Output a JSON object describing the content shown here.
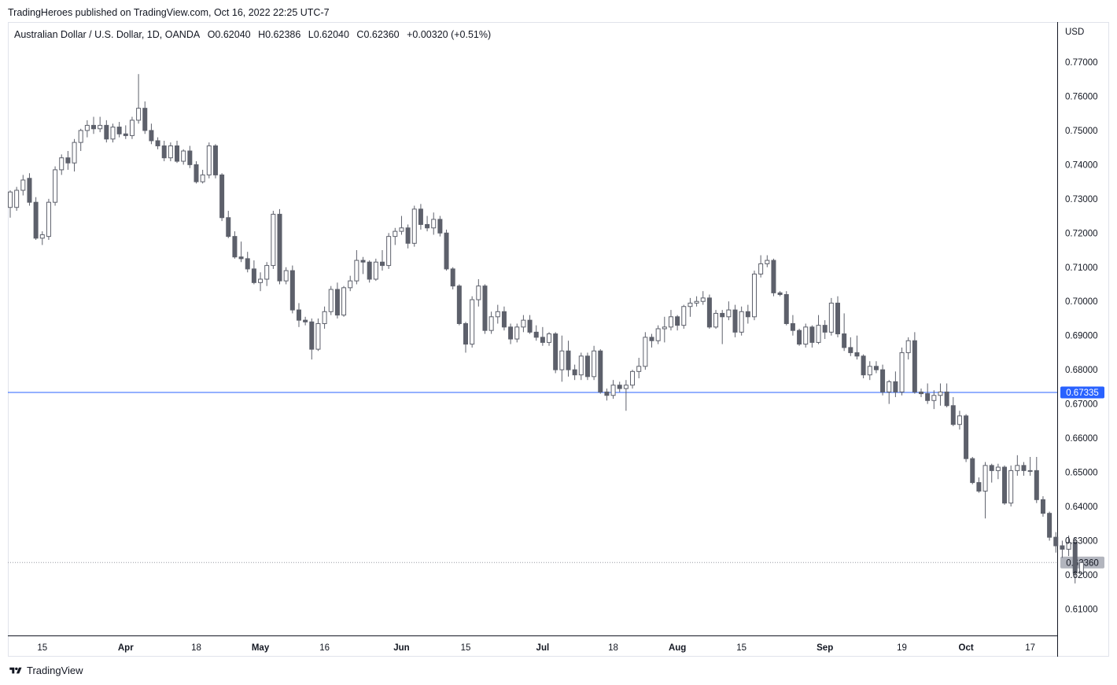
{
  "header": {
    "published": "TradingHeroes published on TradingView.com, Oct 16, 2022 22:25 UTC-7"
  },
  "legend": {
    "symbol": "Australian Dollar / U.S. Dollar, 1D, OANDA",
    "open": "O0.62040",
    "high": "H0.62386",
    "low": "L0.62040",
    "close": "C0.62360",
    "change": "+0.00320 (+0.51%)"
  },
  "footer": {
    "brand": "TradingView"
  },
  "colors": {
    "bear": "#5d606b",
    "bull_fill": "#ffffff",
    "bull_border": "#5d606b",
    "hline": "#2962ff",
    "last_price_tag": "#b2b5be"
  },
  "chart_data": {
    "type": "candlestick",
    "currency_label": "USD",
    "y_ticks": [
      "0.77000",
      "0.76000",
      "0.75000",
      "0.74000",
      "0.73000",
      "0.72000",
      "0.71000",
      "0.70000",
      "0.69000",
      "0.68000",
      "0.67000",
      "0.66000",
      "0.65000",
      "0.64000",
      "0.63000",
      "0.62000",
      "0.61000"
    ],
    "ylim": [
      0.6025,
      0.7815
    ],
    "x_labels": [
      {
        "label": "15",
        "bold": false,
        "index": 5
      },
      {
        "label": "Apr",
        "bold": true,
        "index": 18
      },
      {
        "label": "18",
        "bold": false,
        "index": 29
      },
      {
        "label": "May",
        "bold": true,
        "index": 39
      },
      {
        "label": "16",
        "bold": false,
        "index": 49
      },
      {
        "label": "Jun",
        "bold": true,
        "index": 61
      },
      {
        "label": "15",
        "bold": false,
        "index": 71
      },
      {
        "label": "Jul",
        "bold": true,
        "index": 83
      },
      {
        "label": "18",
        "bold": false,
        "index": 94
      },
      {
        "label": "Aug",
        "bold": true,
        "index": 104
      },
      {
        "label": "15",
        "bold": false,
        "index": 114
      },
      {
        "label": "Sep",
        "bold": true,
        "index": 127
      },
      {
        "label": "19",
        "bold": false,
        "index": 139
      },
      {
        "label": "Oct",
        "bold": true,
        "index": 149
      },
      {
        "label": "17",
        "bold": false,
        "index": 159
      }
    ],
    "horizontal_line": {
      "value": 0.67335,
      "label": "0.67335"
    },
    "last_price": {
      "value": 0.6236,
      "label": "0.62360"
    },
    "candles": [
      [
        0.7275,
        0.7325,
        0.7245,
        0.732
      ],
      [
        0.7275,
        0.7335,
        0.7265,
        0.7325
      ],
      [
        0.7325,
        0.737,
        0.731,
        0.7355
      ],
      [
        0.736,
        0.7375,
        0.728,
        0.729
      ],
      [
        0.729,
        0.7305,
        0.718,
        0.7185
      ],
      [
        0.7185,
        0.7205,
        0.7165,
        0.7195
      ],
      [
        0.719,
        0.73,
        0.718,
        0.729
      ],
      [
        0.729,
        0.7395,
        0.728,
        0.7385
      ],
      [
        0.7385,
        0.743,
        0.737,
        0.742
      ],
      [
        0.742,
        0.744,
        0.7385,
        0.7405
      ],
      [
        0.7405,
        0.7475,
        0.738,
        0.7465
      ],
      [
        0.7465,
        0.7505,
        0.744,
        0.75
      ],
      [
        0.75,
        0.753,
        0.748,
        0.7515
      ],
      [
        0.7515,
        0.754,
        0.749,
        0.7505
      ],
      [
        0.7505,
        0.754,
        0.7495,
        0.7515
      ],
      [
        0.7515,
        0.753,
        0.7465,
        0.7475
      ],
      [
        0.7475,
        0.752,
        0.7465,
        0.751
      ],
      [
        0.751,
        0.7525,
        0.748,
        0.749
      ],
      [
        0.749,
        0.7515,
        0.7475,
        0.7485
      ],
      [
        0.7485,
        0.754,
        0.7475,
        0.753
      ],
      [
        0.753,
        0.7665,
        0.752,
        0.7565
      ],
      [
        0.7565,
        0.7585,
        0.749,
        0.75
      ],
      [
        0.75,
        0.752,
        0.746,
        0.747
      ],
      [
        0.747,
        0.748,
        0.7445,
        0.7455
      ],
      [
        0.7455,
        0.747,
        0.741,
        0.742
      ],
      [
        0.742,
        0.7465,
        0.741,
        0.7455
      ],
      [
        0.7455,
        0.747,
        0.7405,
        0.741
      ],
      [
        0.741,
        0.7445,
        0.74,
        0.744
      ],
      [
        0.744,
        0.7455,
        0.739,
        0.74
      ],
      [
        0.74,
        0.741,
        0.7345,
        0.735
      ],
      [
        0.735,
        0.7385,
        0.7345,
        0.737
      ],
      [
        0.737,
        0.7465,
        0.736,
        0.7455
      ],
      [
        0.7455,
        0.746,
        0.736,
        0.737
      ],
      [
        0.737,
        0.7375,
        0.7235,
        0.7245
      ],
      [
        0.7245,
        0.7265,
        0.7185,
        0.719
      ],
      [
        0.719,
        0.7205,
        0.7125,
        0.713
      ],
      [
        0.713,
        0.7175,
        0.7115,
        0.7125
      ],
      [
        0.7125,
        0.7145,
        0.7085,
        0.7095
      ],
      [
        0.7095,
        0.712,
        0.705,
        0.7055
      ],
      [
        0.7055,
        0.7085,
        0.703,
        0.7065
      ],
      [
        0.7065,
        0.7115,
        0.7045,
        0.7105
      ],
      [
        0.7105,
        0.7265,
        0.7095,
        0.7255
      ],
      [
        0.7255,
        0.727,
        0.705,
        0.706
      ],
      [
        0.706,
        0.71,
        0.705,
        0.709
      ],
      [
        0.709,
        0.7105,
        0.6965,
        0.6975
      ],
      [
        0.6975,
        0.6995,
        0.6925,
        0.6945
      ],
      [
        0.6945,
        0.6955,
        0.693,
        0.694
      ],
      [
        0.694,
        0.695,
        0.683,
        0.686
      ],
      [
        0.686,
        0.695,
        0.6855,
        0.6935
      ],
      [
        0.6935,
        0.6985,
        0.692,
        0.697
      ],
      [
        0.697,
        0.7045,
        0.696,
        0.7035
      ],
      [
        0.7035,
        0.7055,
        0.695,
        0.696
      ],
      [
        0.696,
        0.7045,
        0.6955,
        0.704
      ],
      [
        0.704,
        0.7075,
        0.703,
        0.706
      ],
      [
        0.706,
        0.715,
        0.705,
        0.712
      ],
      [
        0.712,
        0.713,
        0.708,
        0.7115
      ],
      [
        0.7115,
        0.712,
        0.7055,
        0.7065
      ],
      [
        0.7065,
        0.7125,
        0.706,
        0.7115
      ],
      [
        0.7115,
        0.715,
        0.709,
        0.7105
      ],
      [
        0.7105,
        0.72,
        0.7095,
        0.719
      ],
      [
        0.719,
        0.7215,
        0.7165,
        0.7205
      ],
      [
        0.7205,
        0.725,
        0.7195,
        0.7215
      ],
      [
        0.7215,
        0.7225,
        0.7155,
        0.717
      ],
      [
        0.717,
        0.728,
        0.716,
        0.727
      ],
      [
        0.727,
        0.7285,
        0.721,
        0.7225
      ],
      [
        0.7225,
        0.725,
        0.7205,
        0.7215
      ],
      [
        0.7215,
        0.726,
        0.7195,
        0.724
      ],
      [
        0.724,
        0.725,
        0.719,
        0.72
      ],
      [
        0.72,
        0.721,
        0.709,
        0.7095
      ],
      [
        0.7095,
        0.71,
        0.7035,
        0.7045
      ],
      [
        0.7045,
        0.705,
        0.693,
        0.6935
      ],
      [
        0.6935,
        0.694,
        0.685,
        0.6875
      ],
      [
        0.6875,
        0.7015,
        0.6865,
        0.7005
      ],
      [
        0.7005,
        0.7065,
        0.6985,
        0.7045
      ],
      [
        0.7045,
        0.705,
        0.6905,
        0.6915
      ],
      [
        0.6915,
        0.697,
        0.6905,
        0.6955
      ],
      [
        0.6955,
        0.699,
        0.6935,
        0.697
      ],
      [
        0.697,
        0.6985,
        0.6915,
        0.6925
      ],
      [
        0.6925,
        0.6935,
        0.6875,
        0.689
      ],
      [
        0.689,
        0.6935,
        0.688,
        0.6925
      ],
      [
        0.6925,
        0.696,
        0.691,
        0.6945
      ],
      [
        0.6945,
        0.696,
        0.6905,
        0.691
      ],
      [
        0.691,
        0.693,
        0.6885,
        0.6895
      ],
      [
        0.6895,
        0.6925,
        0.687,
        0.688
      ],
      [
        0.688,
        0.691,
        0.687,
        0.6905
      ],
      [
        0.6905,
        0.691,
        0.679,
        0.68
      ],
      [
        0.68,
        0.69,
        0.6765,
        0.6855
      ],
      [
        0.6855,
        0.6885,
        0.678,
        0.68
      ],
      [
        0.68,
        0.6815,
        0.677,
        0.6785
      ],
      [
        0.6785,
        0.685,
        0.677,
        0.684
      ],
      [
        0.684,
        0.685,
        0.677,
        0.678
      ],
      [
        0.678,
        0.687,
        0.677,
        0.6855
      ],
      [
        0.6855,
        0.686,
        0.673,
        0.6735
      ],
      [
        0.6735,
        0.6745,
        0.671,
        0.6725
      ],
      [
        0.6725,
        0.677,
        0.6715,
        0.6755
      ],
      [
        0.6755,
        0.6765,
        0.6735,
        0.6745
      ],
      [
        0.6745,
        0.677,
        0.668,
        0.6755
      ],
      [
        0.6755,
        0.68,
        0.6745,
        0.6795
      ],
      [
        0.6795,
        0.6835,
        0.6775,
        0.681
      ],
      [
        0.681,
        0.691,
        0.68,
        0.6895
      ],
      [
        0.6895,
        0.6905,
        0.6865,
        0.6885
      ],
      [
        0.6885,
        0.693,
        0.6875,
        0.692
      ],
      [
        0.692,
        0.6955,
        0.688,
        0.6925
      ],
      [
        0.6925,
        0.6975,
        0.6915,
        0.6955
      ],
      [
        0.6955,
        0.696,
        0.6915,
        0.693
      ],
      [
        0.693,
        0.699,
        0.692,
        0.6985
      ],
      [
        0.6985,
        0.701,
        0.6955,
        0.6995
      ],
      [
        0.6995,
        0.7015,
        0.6985,
        0.7
      ],
      [
        0.7,
        0.703,
        0.699,
        0.701
      ],
      [
        0.701,
        0.702,
        0.692,
        0.6925
      ],
      [
        0.6925,
        0.6975,
        0.692,
        0.6965
      ],
      [
        0.6965,
        0.6975,
        0.6875,
        0.6955
      ],
      [
        0.6955,
        0.7,
        0.6945,
        0.6975
      ],
      [
        0.6975,
        0.699,
        0.6895,
        0.691
      ],
      [
        0.691,
        0.6985,
        0.69,
        0.697
      ],
      [
        0.697,
        0.699,
        0.6935,
        0.6955
      ],
      [
        0.6955,
        0.709,
        0.6945,
        0.708
      ],
      [
        0.708,
        0.7135,
        0.707,
        0.711
      ],
      [
        0.711,
        0.7135,
        0.71,
        0.712
      ],
      [
        0.712,
        0.7125,
        0.7015,
        0.7025
      ],
      [
        0.7025,
        0.703,
        0.7015,
        0.702
      ],
      [
        0.702,
        0.703,
        0.693,
        0.6935
      ],
      [
        0.6935,
        0.696,
        0.69,
        0.6915
      ],
      [
        0.6915,
        0.692,
        0.687,
        0.6875
      ],
      [
        0.6875,
        0.6935,
        0.6865,
        0.6925
      ],
      [
        0.6925,
        0.693,
        0.6865,
        0.688
      ],
      [
        0.688,
        0.696,
        0.6875,
        0.693
      ],
      [
        0.693,
        0.6945,
        0.689,
        0.691
      ],
      [
        0.691,
        0.701,
        0.69,
        0.6995
      ],
      [
        0.6995,
        0.7015,
        0.6895,
        0.6905
      ],
      [
        0.6905,
        0.6965,
        0.6855,
        0.6865
      ],
      [
        0.6865,
        0.6895,
        0.684,
        0.685
      ],
      [
        0.685,
        0.69,
        0.683,
        0.684
      ],
      [
        0.684,
        0.6845,
        0.6775,
        0.6785
      ],
      [
        0.6785,
        0.6825,
        0.677,
        0.681
      ],
      [
        0.681,
        0.6825,
        0.679,
        0.68
      ],
      [
        0.68,
        0.6815,
        0.6725,
        0.6735
      ],
      [
        0.6735,
        0.677,
        0.67,
        0.6765
      ],
      [
        0.6765,
        0.6795,
        0.672,
        0.6735
      ],
      [
        0.6735,
        0.6865,
        0.6725,
        0.685
      ],
      [
        0.685,
        0.6895,
        0.683,
        0.6885
      ],
      [
        0.6885,
        0.691,
        0.673,
        0.6735
      ],
      [
        0.6735,
        0.6745,
        0.672,
        0.673
      ],
      [
        0.673,
        0.676,
        0.67,
        0.671
      ],
      [
        0.671,
        0.674,
        0.6685,
        0.6725
      ],
      [
        0.6725,
        0.676,
        0.6695,
        0.6735
      ],
      [
        0.6735,
        0.676,
        0.669,
        0.6695
      ],
      [
        0.6695,
        0.672,
        0.6635,
        0.664
      ],
      [
        0.664,
        0.668,
        0.6625,
        0.6665
      ],
      [
        0.6665,
        0.667,
        0.653,
        0.654
      ],
      [
        0.654,
        0.6545,
        0.6465,
        0.647
      ],
      [
        0.647,
        0.6485,
        0.644,
        0.6445
      ],
      [
        0.6445,
        0.653,
        0.6365,
        0.652
      ],
      [
        0.652,
        0.6525,
        0.647,
        0.6505
      ],
      [
        0.6505,
        0.6525,
        0.648,
        0.6515
      ],
      [
        0.6515,
        0.652,
        0.6405,
        0.641
      ],
      [
        0.641,
        0.652,
        0.64,
        0.6505
      ],
      [
        0.6505,
        0.655,
        0.649,
        0.652
      ],
      [
        0.652,
        0.653,
        0.649,
        0.6505
      ],
      [
        0.6505,
        0.6545,
        0.649,
        0.6505
      ],
      [
        0.6505,
        0.6545,
        0.641,
        0.642
      ],
      [
        0.642,
        0.643,
        0.637,
        0.638
      ],
      [
        0.638,
        0.6385,
        0.63,
        0.631
      ],
      [
        0.631,
        0.6325,
        0.6265,
        0.6285
      ],
      [
        0.6285,
        0.63,
        0.625,
        0.6275
      ],
      [
        0.6275,
        0.6315,
        0.6255,
        0.6295
      ],
      [
        0.6295,
        0.631,
        0.6175,
        0.6205
      ],
      [
        0.6204,
        0.6239,
        0.6204,
        0.6236
      ]
    ]
  }
}
